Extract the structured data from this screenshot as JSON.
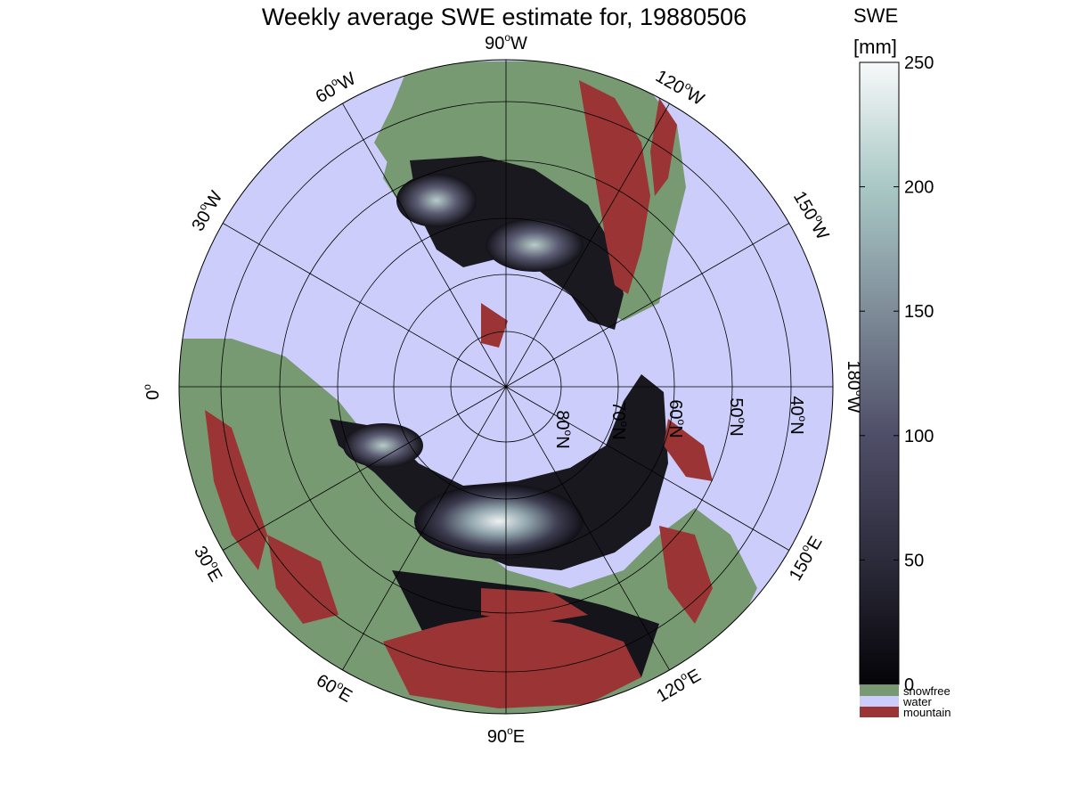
{
  "title": "Weekly average SWE estimate for, 19880506",
  "longitude_labels": [
    {
      "base": "90",
      "suffix": "W"
    },
    {
      "base": "120",
      "suffix": "W"
    },
    {
      "base": "150",
      "suffix": "W"
    },
    {
      "base": "180",
      "suffix": "W"
    },
    {
      "base": "150",
      "suffix": "E"
    },
    {
      "base": "120",
      "suffix": "E"
    },
    {
      "base": "90",
      "suffix": "E"
    },
    {
      "base": "60",
      "suffix": "E"
    },
    {
      "base": "30",
      "suffix": "E"
    },
    {
      "base": "0",
      "suffix": ""
    },
    {
      "base": "30",
      "suffix": "W"
    },
    {
      "base": "60",
      "suffix": "W"
    }
  ],
  "latitude_labels": [
    {
      "base": "80",
      "suffix": "N"
    },
    {
      "base": "70",
      "suffix": "N"
    },
    {
      "base": "60",
      "suffix": "N"
    },
    {
      "base": "50",
      "suffix": "N"
    },
    {
      "base": "40",
      "suffix": "N"
    }
  ],
  "colorbar": {
    "title_line1": "SWE",
    "title_line2": "[mm]",
    "min": 0,
    "max": 250,
    "ticks": [
      "0",
      "50",
      "100",
      "150",
      "200",
      "250"
    ],
    "categories": [
      {
        "label": "snowfree",
        "color": "#789a72"
      },
      {
        "label": "water",
        "color": "#cccdfb"
      },
      {
        "label": "mountain",
        "color": "#9b3535"
      }
    ]
  },
  "colors": {
    "water": "#cccdfb",
    "snowfree": "#789a72",
    "mountain": "#9b3535",
    "swe_low": "#0c0b10",
    "swe_mid": "#4b4a62",
    "swe_high": "#f4f7f7"
  }
}
